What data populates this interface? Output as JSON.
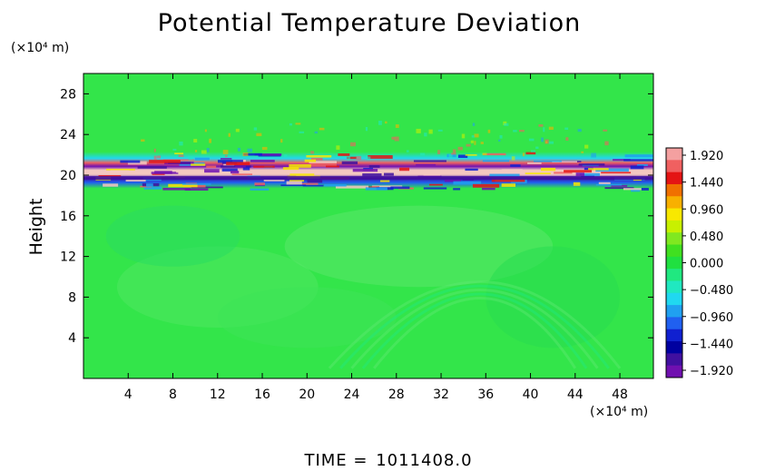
{
  "chart_data": {
    "type": "heatmap",
    "title": "Potential Temperature Deviation",
    "ylabel": "Height",
    "xunit": "(×10⁴ m)",
    "yunit": "(×10⁴ m)",
    "x_ticks": [
      "4",
      "8",
      "12",
      "16",
      "20",
      "24",
      "28",
      "32",
      "36",
      "40",
      "44",
      "48"
    ],
    "x_tick_values": [
      4,
      8,
      12,
      16,
      20,
      24,
      28,
      32,
      36,
      40,
      44,
      48
    ],
    "xlim": [
      0,
      51
    ],
    "y_ticks": [
      "4",
      "8",
      "12",
      "16",
      "20",
      "24",
      "28"
    ],
    "y_tick_values": [
      4,
      8,
      12,
      16,
      20,
      24,
      28
    ],
    "ylim": [
      0,
      30
    ],
    "colorbar": {
      "labels": [
        "1.920",
        "1.440",
        "0.960",
        "0.480",
        "0.000",
        "−0.480",
        "−0.960",
        "−1.440",
        "−1.920"
      ],
      "values": [
        1.92,
        1.44,
        0.96,
        0.48,
        0.0,
        -0.48,
        -0.96,
        -1.44,
        -1.92
      ],
      "colors_top_to_bottom": [
        "#f4a0a0",
        "#f06060",
        "#e41414",
        "#f07000",
        "#f8b000",
        "#f8e800",
        "#c8f000",
        "#80e820",
        "#40e020",
        "#20e040",
        "#20e880",
        "#20e8c0",
        "#20d8f0",
        "#20a0f0",
        "#2060f0",
        "#1020d0",
        "#0000a0",
        "#4010a0",
        "#7010b0"
      ]
    },
    "background_color": "#33e54a",
    "band_center_y": 20.5,
    "grid": false
  },
  "footer": {
    "time_label": "TIME  =",
    "time_value": "1011408.0"
  }
}
